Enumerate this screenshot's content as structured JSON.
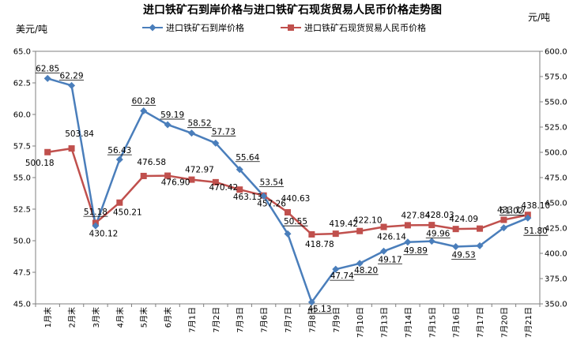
{
  "chart_data": {
    "type": "line",
    "title": "进口铁矿石到岸价格与进口铁矿石现货贸易人民币价格走势图",
    "y_left_unit": "美元/吨",
    "y_right_unit": "元/吨",
    "categories": [
      "1月末",
      "2月末",
      "3月末",
      "4月末",
      "5月末",
      "6月末",
      "7月1日",
      "7月2日",
      "7月3日",
      "7月6日",
      "7月7日",
      "7月8日",
      "7月9日",
      "7月10日",
      "7月13日",
      "7月14日",
      "7月15日",
      "7月16日",
      "7月17日",
      "7月20日",
      "7月21日"
    ],
    "y_left_lim": [
      45.0,
      65.0
    ],
    "y_left_ticks": [
      "45.0",
      "47.5",
      "50.0",
      "52.5",
      "55.0",
      "57.5",
      "60.0",
      "62.5",
      "65.0"
    ],
    "y_right_lim": [
      350.0,
      600.0
    ],
    "y_right_ticks": [
      "350.0",
      "375.0",
      "400.0",
      "425.0",
      "450.0",
      "475.0",
      "500.0",
      "525.0",
      "550.0",
      "575.0",
      "600.0"
    ],
    "legend_position": "top",
    "series": [
      {
        "name": "进口铁矿石到岸价格",
        "axis": "left",
        "color": "#4a7ebb",
        "marker": "diamond",
        "values": [
          62.85,
          62.29,
          51.18,
          56.43,
          60.28,
          59.19,
          58.52,
          57.73,
          55.64,
          53.54,
          50.55,
          45.13,
          47.74,
          48.2,
          49.17,
          49.89,
          49.96,
          49.53,
          null,
          51.02,
          51.8
        ],
        "raw_values": [
          62.85,
          62.29,
          51.18,
          56.43,
          60.28,
          59.19,
          58.52,
          57.73,
          55.64,
          53.54,
          50.55,
          45.13,
          47.74,
          48.2,
          49.17,
          49.89,
          49.96,
          49.53,
          49.6,
          51.02,
          51.8
        ],
        "labels": [
          "62.85",
          "62.29",
          "51.18",
          "56.43",
          "60.28",
          "59.19",
          "58.52",
          "57.73",
          "55.64",
          "53.54",
          "50.55",
          "45.13",
          "47.74",
          "48.20",
          "49.17",
          "49.89",
          "49.96",
          "49.53",
          "",
          "51.02",
          "51.80"
        ]
      },
      {
        "name": "进口铁矿石现货贸易人民币价格",
        "axis": "right",
        "color": "#c0504d",
        "marker": "square",
        "values": [
          500.18,
          503.84,
          430.12,
          450.21,
          476.58,
          476.9,
          472.97,
          470.42,
          463.13,
          457.26,
          440.63,
          418.78,
          419.42,
          422.1,
          426.14,
          427.84,
          428.03,
          424.09,
          null,
          433.17,
          438.1
        ],
        "raw_values": [
          500.18,
          503.84,
          430.12,
          450.21,
          476.58,
          476.9,
          472.97,
          470.42,
          463.13,
          457.26,
          440.63,
          418.78,
          419.42,
          422.1,
          426.14,
          427.84,
          428.03,
          424.09,
          424.5,
          433.17,
          438.1
        ],
        "labels": [
          "500.18",
          "503.84",
          "430.12",
          "450.21",
          "476.58",
          "476.90",
          "472.97",
          "470.42",
          "463.13",
          "457.26",
          "440.63",
          "418.78",
          "419.42",
          "422.10",
          "426.14",
          "427.84",
          "428.03",
          "424.09",
          "",
          "433.17",
          "438.10"
        ]
      }
    ]
  }
}
